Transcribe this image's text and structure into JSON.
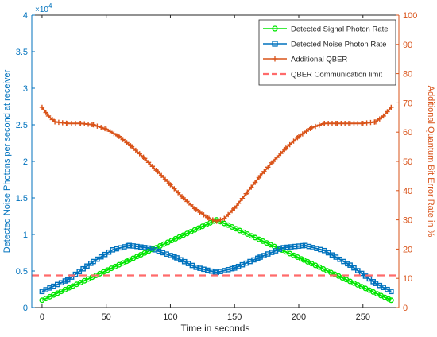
{
  "chart_data": {
    "type": "line",
    "title": "",
    "xlabel": "Time in seconds",
    "ylabel_left": "Detected Noise Photons per second at receiver",
    "ylabel_right": "Additional Quantum Bit Error Rate in %",
    "xlim": [
      -8,
      278
    ],
    "ylim_left": [
      0,
      40000
    ],
    "ylim_right": [
      0,
      100
    ],
    "left_exponent": "4",
    "x_ticks": [
      0,
      50,
      100,
      150,
      200,
      250
    ],
    "x_tick_labels": [
      "0",
      "50",
      "100",
      "150",
      "200",
      "250"
    ],
    "y_left_ticks": [
      0,
      5000,
      10000,
      15000,
      20000,
      25000,
      30000,
      35000,
      40000
    ],
    "y_left_tick_labels": [
      "0",
      "0.5",
      "1",
      "1.5",
      "2",
      "2.5",
      "3",
      "3.5",
      "4"
    ],
    "y_right_ticks": [
      0,
      10,
      20,
      30,
      40,
      50,
      60,
      70,
      80,
      90,
      100
    ],
    "y_right_tick_labels": [
      "0",
      "10",
      "20",
      "30",
      "40",
      "50",
      "60",
      "70",
      "80",
      "90",
      "100"
    ],
    "grid": false,
    "legend_position": "top-right",
    "colors": {
      "signal": "#00e600",
      "noise": "#0072bd",
      "qber": "#d95319",
      "limit": "#ff6b6b",
      "left_axis": "#0072bd",
      "right_axis": "#d95319"
    },
    "series": [
      {
        "name": "Detected Signal Photon Rate",
        "axis": "left",
        "marker": "circle",
        "x": [
          0,
          68,
          136,
          204,
          272
        ],
        "values": [
          1000,
          6500,
          12000,
          6500,
          1000
        ]
      },
      {
        "name": "Detected Noise Photon Rate",
        "axis": "left",
        "marker": "square",
        "x": [
          0,
          20,
          40,
          55,
          68,
          85,
          105,
          120,
          136,
          150,
          170,
          188,
          205,
          220,
          240,
          260,
          272
        ],
        "values": [
          2200,
          3800,
          6300,
          7900,
          8500,
          8100,
          6800,
          5500,
          4800,
          5400,
          6900,
          8200,
          8500,
          7800,
          5800,
          3300,
          2200
        ]
      },
      {
        "name": "Additional QBER",
        "axis": "right",
        "marker": "plus",
        "x": [
          0,
          5,
          10,
          20,
          30,
          40,
          50,
          60,
          70,
          80,
          90,
          100,
          110,
          120,
          130,
          136,
          142,
          150,
          160,
          170,
          180,
          190,
          200,
          210,
          220,
          230,
          240,
          250,
          260,
          266,
          272
        ],
        "values": [
          68.5,
          65.5,
          63.5,
          63,
          63,
          62.5,
          61,
          58.5,
          55,
          51,
          46.5,
          42,
          37.5,
          33.5,
          30.5,
          29.5,
          30.5,
          34,
          39.5,
          45,
          50,
          54.5,
          58.5,
          61.5,
          63,
          63,
          63,
          63,
          63.5,
          65.5,
          68.5
        ]
      },
      {
        "name": "QBER Communication limit",
        "axis": "right",
        "marker": "none",
        "line_style": "dashed",
        "x": [
          -8,
          278
        ],
        "values": [
          11,
          11
        ]
      }
    ]
  }
}
